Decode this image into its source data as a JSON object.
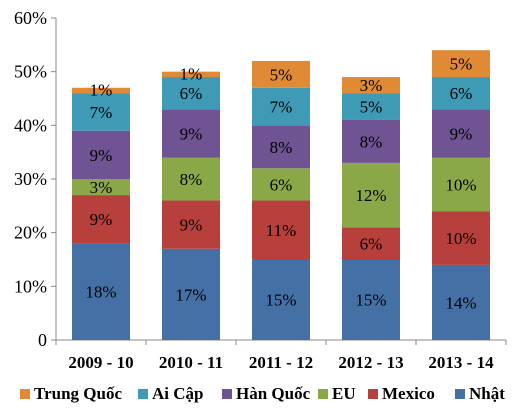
{
  "chart_data": {
    "type": "bar",
    "stacked": true,
    "categories": [
      "2009 - 10",
      "2010 - 11",
      "2011 - 12",
      "2012 - 13",
      "2013 - 14"
    ],
    "series": [
      {
        "name": "Nhật",
        "values": [
          18,
          17,
          15,
          15,
          14
        ],
        "labels": [
          "18%",
          "17%",
          "15%",
          "15%",
          "14%"
        ],
        "color": "#4470a5"
      },
      {
        "name": "Mexico",
        "values": [
          9,
          9,
          11,
          6,
          10
        ],
        "labels": [
          "9%",
          "9%",
          "11%",
          "6%",
          "10%"
        ],
        "color": "#b8403c"
      },
      {
        "name": "EU",
        "values": [
          3,
          8,
          6,
          12,
          10
        ],
        "labels": [
          "3%",
          "8%",
          "6%",
          "12%",
          "10%"
        ],
        "color": "#8ba848"
      },
      {
        "name": "Hàn Quốc",
        "values": [
          9,
          9,
          8,
          8,
          9
        ],
        "labels": [
          "9%",
          "9%",
          "8%",
          "8%",
          "9%"
        ],
        "color": "#6f5392"
      },
      {
        "name": "Ai Cập",
        "values": [
          7,
          6,
          7,
          5,
          6
        ],
        "labels": [
          "7%",
          "6%",
          "7%",
          "5%",
          "6%"
        ],
        "color": "#3e9ab5"
      },
      {
        "name": "Trung Quốc",
        "values": [
          1,
          1,
          5,
          3,
          5
        ],
        "labels": [
          "1%",
          "1%",
          "5%",
          "3%",
          "5%"
        ],
        "color": "#e08a36"
      }
    ],
    "ylim": [
      0,
      60
    ],
    "yticks": [
      0,
      10,
      20,
      30,
      40,
      50,
      60
    ],
    "ytick_labels": [
      "0",
      "10%",
      "20%",
      "30%",
      "40%",
      "50%",
      "60%"
    ],
    "legend_order": [
      "Trung Quốc",
      "Ai Cập",
      "Hàn Quốc",
      "EU",
      "Mexico",
      "Nhật"
    ],
    "legend_position": "bottom",
    "grid": false
  }
}
